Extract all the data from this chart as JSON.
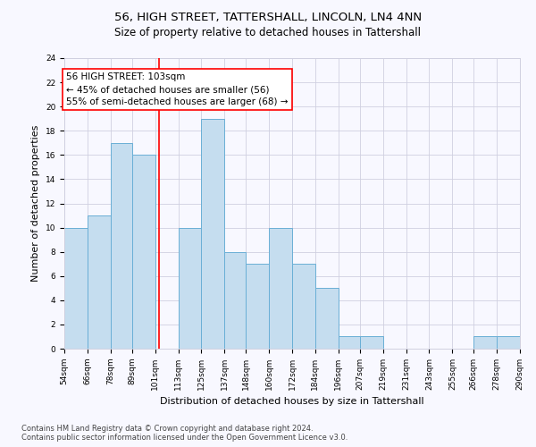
{
  "title1": "56, HIGH STREET, TATTERSHALL, LINCOLN, LN4 4NN",
  "title2": "Size of property relative to detached houses in Tattershall",
  "xlabel": "Distribution of detached houses by size in Tattershall",
  "ylabel": "Number of detached properties",
  "footnote1": "Contains HM Land Registry data © Crown copyright and database right 2024.",
  "footnote2": "Contains public sector information licensed under the Open Government Licence v3.0.",
  "annotation_line1": "56 HIGH STREET: 103sqm",
  "annotation_line2": "← 45% of detached houses are smaller (56)",
  "annotation_line3": "55% of semi-detached houses are larger (68) →",
  "bar_edges": [
    54,
    66,
    78,
    89,
    101,
    113,
    125,
    137,
    148,
    160,
    172,
    184,
    196,
    207,
    219,
    231,
    243,
    255,
    266,
    278,
    290
  ],
  "bar_heights": [
    10,
    11,
    17,
    16,
    0,
    10,
    19,
    8,
    7,
    10,
    7,
    5,
    1,
    1,
    0,
    0,
    0,
    0,
    1,
    1
  ],
  "bar_color": "#C5DDEF",
  "bar_edgecolor": "#6AAFD6",
  "red_line_x": 103,
  "ylim": [
    0,
    24
  ],
  "yticks": [
    0,
    2,
    4,
    6,
    8,
    10,
    12,
    14,
    16,
    18,
    20,
    22,
    24
  ],
  "xtick_labels": [
    "54sqm",
    "66sqm",
    "78sqm",
    "89sqm",
    "101sqm",
    "113sqm",
    "125sqm",
    "137sqm",
    "148sqm",
    "160sqm",
    "172sqm",
    "184sqm",
    "196sqm",
    "207sqm",
    "219sqm",
    "231sqm",
    "243sqm",
    "255sqm",
    "266sqm",
    "278sqm",
    "290sqm"
  ],
  "background_color": "#f8f8ff",
  "grid_color": "#d0d0e0",
  "title_fontsize": 9.5,
  "subtitle_fontsize": 8.5,
  "axis_label_fontsize": 8,
  "tick_fontsize": 6.5,
  "annot_fontsize": 7.5,
  "footnote_fontsize": 6
}
